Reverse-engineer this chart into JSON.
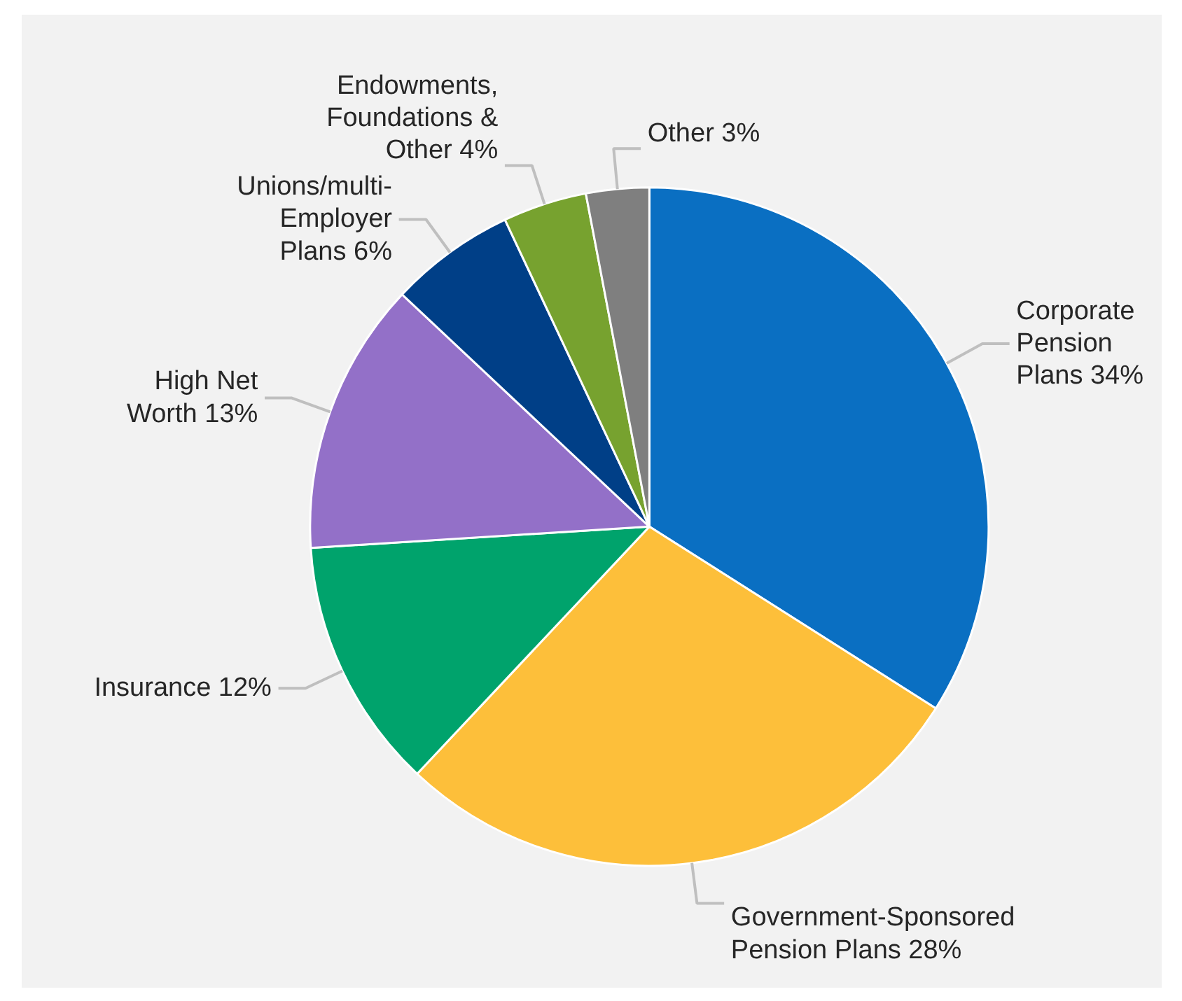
{
  "chart_data": {
    "type": "pie",
    "categories": [
      "Corporate Pension Plans",
      "Government-Sponsored Pension Plans",
      "Insurance",
      "High Net Worth",
      "Unions/multi-Employer Plans",
      "Endowments, Foundations & Other",
      "Other"
    ],
    "values": [
      34,
      28,
      12,
      13,
      6,
      4,
      3
    ],
    "value_labels": [
      "34%",
      "28%",
      "12%",
      "13%",
      "6%",
      "4%",
      "3%"
    ],
    "colors": [
      "#0a6fc2",
      "#fdbf3a",
      "#00a36c",
      "#9370c8",
      "#003f87",
      "#77a22f",
      "#7f7f7f"
    ]
  }
}
